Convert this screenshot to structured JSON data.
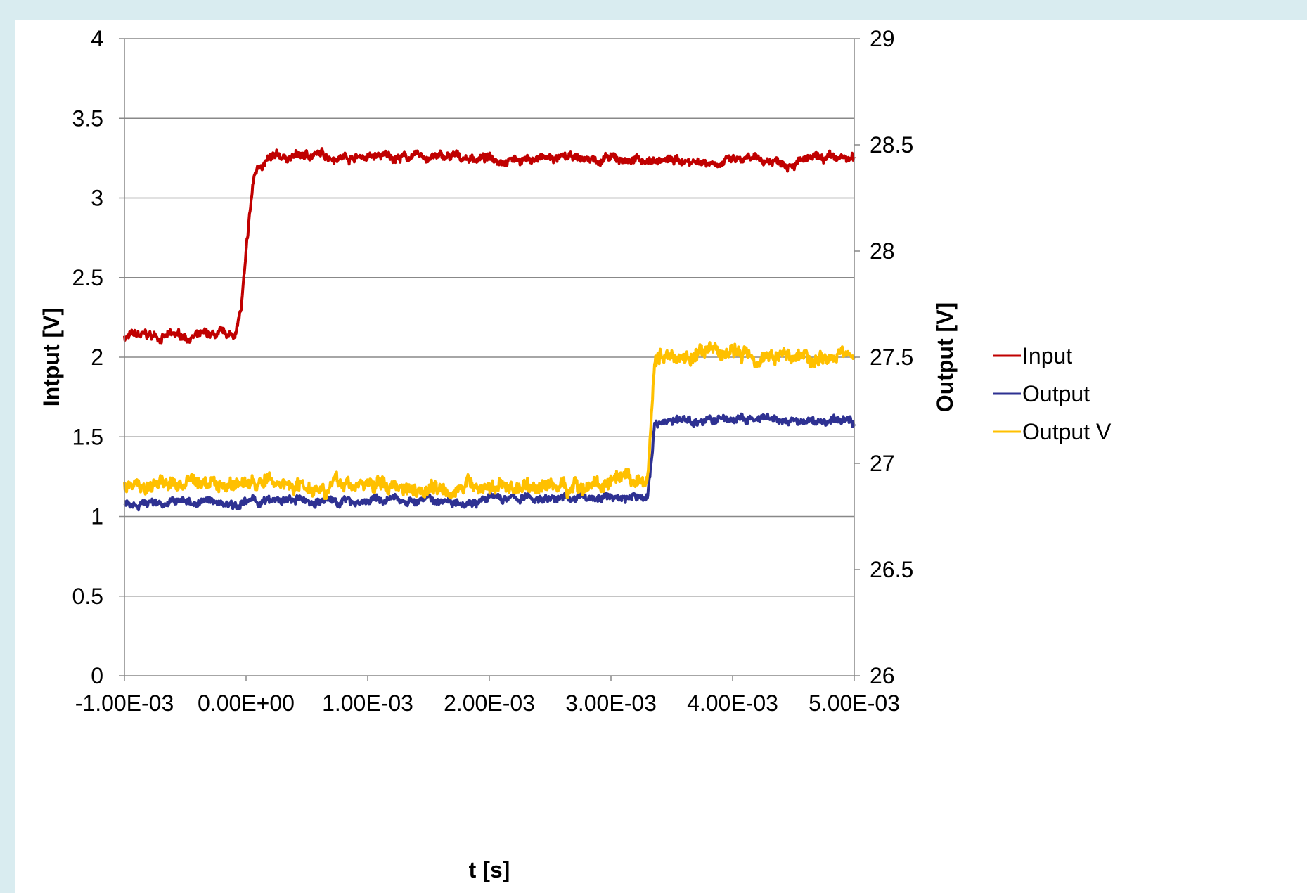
{
  "slide": {
    "title": ""
  },
  "chart_data": {
    "type": "line",
    "title": "",
    "xlabel": "t [s]",
    "ylabel_left": "Intput [V]",
    "ylabel_right": "Output [V]",
    "xlim": [
      -0.001,
      0.005
    ],
    "ylim_left": [
      0,
      4
    ],
    "ylim_right": [
      26,
      29
    ],
    "x_ticks": [
      -0.001,
      0.0,
      0.001,
      0.002,
      0.003,
      0.004,
      0.005
    ],
    "x_tick_labels": [
      "-1.00E-03",
      "0.00E+00",
      "1.00E-03",
      "2.00E-03",
      "3.00E-03",
      "4.00E-03",
      "5.00E-03"
    ],
    "y_left_ticks": [
      0,
      0.5,
      1,
      1.5,
      2,
      2.5,
      3,
      3.5,
      4
    ],
    "y_left_tick_labels": [
      "0",
      "0.5",
      "1",
      "1.5",
      "2",
      "2.5",
      "3",
      "3.5",
      "4"
    ],
    "y_right_ticks": [
      26,
      26.5,
      27,
      27.5,
      28,
      28.5,
      29
    ],
    "y_right_tick_labels": [
      "26",
      "26.5",
      "27",
      "27.5",
      "28",
      "28.5",
      "29"
    ],
    "grid": "horizontal",
    "legend_position": "right",
    "series": [
      {
        "name": "Input",
        "axis": "left",
        "color": "#c00000",
        "x": [
          -0.001,
          -0.0001,
          -4e-05,
          2e-05,
          6e-05,
          0.0001,
          0.00016,
          0.00022,
          0.0003,
          0.0004,
          0.0006,
          0.001,
          0.002,
          0.003,
          0.004,
          0.005
        ],
        "y": [
          2.13,
          2.13,
          2.3,
          2.8,
          3.1,
          3.2,
          3.23,
          3.24,
          3.25,
          3.26,
          3.27,
          3.26,
          3.25,
          3.24,
          3.23,
          3.24
        ]
      },
      {
        "name": "Output",
        "axis": "left",
        "color": "#2e3192",
        "x": [
          -0.001,
          0.0,
          0.001,
          0.002,
          0.003,
          0.0033,
          0.00336,
          0.0034,
          0.0036,
          0.004,
          0.0045,
          0.005
        ],
        "y": [
          1.09,
          1.09,
          1.1,
          1.11,
          1.12,
          1.12,
          1.59,
          1.6,
          1.6,
          1.61,
          1.59,
          1.6
        ]
      },
      {
        "name": "Output V",
        "axis": "right",
        "color": "#ffc000",
        "x": [
          -0.001,
          0.0,
          0.001,
          0.002,
          0.003,
          0.0033,
          0.00336,
          0.0034,
          0.0036,
          0.004,
          0.0045,
          0.005
        ],
        "y": [
          26.9,
          26.91,
          26.9,
          26.89,
          26.9,
          26.9,
          27.5,
          27.51,
          27.51,
          27.52,
          27.51,
          27.51
        ]
      }
    ]
  }
}
